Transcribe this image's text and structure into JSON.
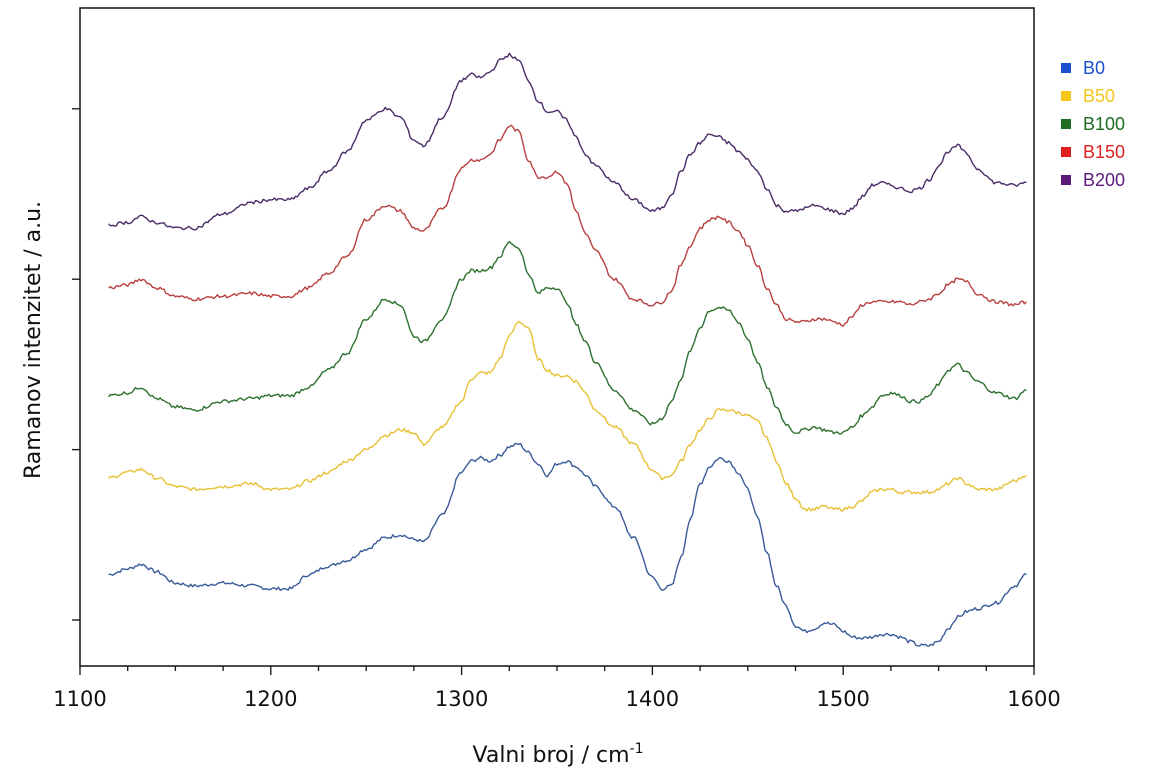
{
  "chart_data": {
    "type": "line",
    "xlabel": "Valni broj / cm",
    "xlabel_sup": "-1",
    "ylabel": "Ramanov intenzitet / a.u.",
    "xlim": [
      1100,
      1600
    ],
    "ylim": [
      0,
      10
    ],
    "x_ticks": [
      1100,
      1200,
      1300,
      1400,
      1500,
      1600
    ],
    "x_tick_labels": [
      "1100",
      "1200",
      "1300",
      "1400",
      "1500",
      "1600"
    ],
    "y_ticks": [
      0,
      3,
      6,
      9
    ],
    "y_tick_labels_shown": false,
    "grid": false,
    "legend_position": "top-right",
    "series": [
      {
        "name": "B0",
        "color": "#3a5a9a",
        "legend_color": "#1a4fd0",
        "x": [
          1115,
          1125,
          1132,
          1140,
          1150,
          1160,
          1175,
          1190,
          1200,
          1210,
          1220,
          1230,
          1240,
          1250,
          1260,
          1268,
          1275,
          1280,
          1290,
          1300,
          1305,
          1310,
          1315,
          1320,
          1325,
          1330,
          1335,
          1340,
          1345,
          1350,
          1355,
          1360,
          1365,
          1370,
          1380,
          1390,
          1400,
          1405,
          1410,
          1415,
          1420,
          1425,
          1430,
          1435,
          1440,
          1445,
          1450,
          1455,
          1460,
          1465,
          1470,
          1475,
          1480,
          1485,
          1490,
          1495,
          1500,
          1505,
          1510,
          1515,
          1520,
          1525,
          1530,
          1535,
          1540,
          1545,
          1550,
          1555,
          1560,
          1565,
          1570,
          1580,
          1590,
          1596
        ],
        "values": [
          0.8,
          0.9,
          0.98,
          0.85,
          0.65,
          0.6,
          0.65,
          0.6,
          0.55,
          0.55,
          0.8,
          0.95,
          1.05,
          1.25,
          1.45,
          1.5,
          1.42,
          1.38,
          1.85,
          2.6,
          2.8,
          2.85,
          2.8,
          2.9,
          3.05,
          3.1,
          2.95,
          2.75,
          2.55,
          2.75,
          2.8,
          2.7,
          2.55,
          2.35,
          2.0,
          1.45,
          0.75,
          0.55,
          0.6,
          1.1,
          1.8,
          2.4,
          2.7,
          2.85,
          2.8,
          2.6,
          2.3,
          1.8,
          1.2,
          0.6,
          0.25,
          -0.1,
          -0.2,
          -0.15,
          -0.05,
          -0.08,
          -0.2,
          -0.3,
          -0.32,
          -0.3,
          -0.25,
          -0.25,
          -0.3,
          -0.38,
          -0.45,
          -0.45,
          -0.38,
          -0.15,
          0.05,
          0.15,
          0.2,
          0.3,
          0.6,
          0.8
        ]
      },
      {
        "name": "B50",
        "color": "#e8c034",
        "legend_color": "#f5c518",
        "x": [
          1115,
          1125,
          1132,
          1140,
          1150,
          1160,
          1175,
          1190,
          1200,
          1210,
          1220,
          1230,
          1240,
          1250,
          1260,
          1268,
          1275,
          1280,
          1290,
          1300,
          1305,
          1310,
          1315,
          1320,
          1325,
          1330,
          1335,
          1340,
          1345,
          1350,
          1355,
          1360,
          1365,
          1370,
          1380,
          1390,
          1400,
          1405,
          1410,
          1415,
          1420,
          1425,
          1430,
          1435,
          1440,
          1445,
          1450,
          1455,
          1460,
          1465,
          1470,
          1475,
          1480,
          1485,
          1490,
          1495,
          1500,
          1505,
          1510,
          1515,
          1520,
          1525,
          1530,
          1535,
          1540,
          1545,
          1550,
          1555,
          1560,
          1565,
          1570,
          1580,
          1590,
          1596
        ],
        "values": [
          2.5,
          2.6,
          2.65,
          2.5,
          2.35,
          2.3,
          2.35,
          2.4,
          2.3,
          2.3,
          2.45,
          2.6,
          2.8,
          3.0,
          3.25,
          3.35,
          3.3,
          3.1,
          3.4,
          3.85,
          4.25,
          4.35,
          4.35,
          4.6,
          5.0,
          5.25,
          5.15,
          4.6,
          4.4,
          4.3,
          4.3,
          4.2,
          4.0,
          3.7,
          3.4,
          3.1,
          2.65,
          2.5,
          2.55,
          2.8,
          3.1,
          3.35,
          3.55,
          3.7,
          3.7,
          3.65,
          3.6,
          3.5,
          3.2,
          2.8,
          2.4,
          2.15,
          1.95,
          1.95,
          2.0,
          1.95,
          1.95,
          2.0,
          2.1,
          2.25,
          2.3,
          2.3,
          2.25,
          2.25,
          2.25,
          2.25,
          2.3,
          2.4,
          2.5,
          2.4,
          2.3,
          2.3,
          2.45,
          2.55
        ]
      },
      {
        "name": "B100",
        "color": "#2e7030",
        "legend_color": "#1e6b22",
        "x": [
          1115,
          1125,
          1132,
          1140,
          1150,
          1160,
          1175,
          1190,
          1200,
          1210,
          1220,
          1230,
          1240,
          1250,
          1260,
          1268,
          1275,
          1280,
          1290,
          1300,
          1305,
          1310,
          1315,
          1320,
          1325,
          1330,
          1335,
          1340,
          1345,
          1350,
          1355,
          1360,
          1365,
          1370,
          1380,
          1390,
          1400,
          1405,
          1410,
          1415,
          1420,
          1425,
          1430,
          1435,
          1440,
          1445,
          1450,
          1455,
          1460,
          1465,
          1470,
          1475,
          1480,
          1485,
          1490,
          1495,
          1500,
          1505,
          1510,
          1515,
          1520,
          1525,
          1530,
          1535,
          1540,
          1545,
          1550,
          1555,
          1560,
          1565,
          1570,
          1580,
          1590,
          1596
        ],
        "values": [
          3.95,
          4.0,
          4.1,
          3.9,
          3.75,
          3.7,
          3.85,
          3.9,
          3.95,
          3.95,
          4.1,
          4.4,
          4.7,
          5.3,
          5.65,
          5.55,
          5.0,
          4.9,
          5.3,
          6.0,
          6.15,
          6.15,
          6.2,
          6.4,
          6.65,
          6.55,
          6.1,
          5.75,
          5.85,
          5.85,
          5.6,
          5.2,
          4.9,
          4.55,
          4.05,
          3.7,
          3.45,
          3.55,
          3.85,
          4.25,
          4.75,
          5.15,
          5.45,
          5.5,
          5.45,
          5.25,
          4.95,
          4.55,
          4.1,
          3.75,
          3.45,
          3.3,
          3.35,
          3.4,
          3.35,
          3.3,
          3.3,
          3.4,
          3.6,
          3.75,
          3.95,
          4.0,
          3.95,
          3.85,
          3.85,
          3.95,
          4.15,
          4.4,
          4.5,
          4.35,
          4.2,
          4.0,
          3.9,
          4.05
        ]
      },
      {
        "name": "B150",
        "color": "#b84040",
        "legend_color": "#e02020",
        "x": [
          1115,
          1125,
          1132,
          1140,
          1150,
          1160,
          1175,
          1190,
          1200,
          1210,
          1220,
          1230,
          1240,
          1250,
          1260,
          1268,
          1275,
          1280,
          1290,
          1300,
          1305,
          1310,
          1315,
          1320,
          1325,
          1330,
          1335,
          1340,
          1345,
          1350,
          1355,
          1360,
          1365,
          1370,
          1380,
          1390,
          1400,
          1405,
          1410,
          1415,
          1420,
          1425,
          1430,
          1435,
          1440,
          1445,
          1450,
          1455,
          1460,
          1465,
          1470,
          1475,
          1480,
          1485,
          1490,
          1495,
          1500,
          1505,
          1510,
          1515,
          1520,
          1525,
          1530,
          1535,
          1540,
          1545,
          1550,
          1555,
          1560,
          1565,
          1570,
          1580,
          1590,
          1596
        ],
        "values": [
          5.85,
          5.9,
          6.0,
          5.85,
          5.7,
          5.65,
          5.7,
          5.75,
          5.7,
          5.7,
          5.85,
          6.1,
          6.4,
          7.05,
          7.3,
          7.2,
          6.9,
          6.85,
          7.25,
          7.95,
          8.1,
          8.1,
          8.2,
          8.45,
          8.7,
          8.6,
          8.1,
          7.8,
          7.8,
          7.9,
          7.7,
          7.2,
          6.8,
          6.5,
          6.0,
          5.65,
          5.55,
          5.6,
          5.8,
          6.25,
          6.6,
          6.9,
          7.05,
          7.1,
          7.0,
          6.85,
          6.6,
          6.25,
          5.85,
          5.55,
          5.3,
          5.25,
          5.25,
          5.3,
          5.3,
          5.25,
          5.2,
          5.35,
          5.55,
          5.6,
          5.6,
          5.6,
          5.6,
          5.55,
          5.6,
          5.65,
          5.75,
          5.9,
          6.0,
          5.95,
          5.75,
          5.6,
          5.55,
          5.6
        ]
      },
      {
        "name": "B200",
        "color": "#4a2c66",
        "legend_color": "#5c1a7a",
        "x": [
          1115,
          1125,
          1132,
          1140,
          1150,
          1160,
          1175,
          1190,
          1200,
          1210,
          1220,
          1230,
          1240,
          1250,
          1260,
          1268,
          1275,
          1280,
          1290,
          1300,
          1305,
          1310,
          1315,
          1320,
          1325,
          1330,
          1335,
          1340,
          1345,
          1350,
          1355,
          1360,
          1365,
          1370,
          1380,
          1390,
          1400,
          1405,
          1410,
          1415,
          1420,
          1425,
          1430,
          1435,
          1440,
          1445,
          1450,
          1455,
          1460,
          1465,
          1470,
          1475,
          1480,
          1485,
          1490,
          1495,
          1500,
          1505,
          1510,
          1515,
          1520,
          1525,
          1530,
          1535,
          1540,
          1545,
          1550,
          1555,
          1560,
          1565,
          1570,
          1580,
          1590,
          1596
        ],
        "values": [
          6.95,
          7.0,
          7.1,
          7.0,
          6.9,
          6.9,
          7.15,
          7.35,
          7.4,
          7.4,
          7.6,
          7.9,
          8.25,
          8.8,
          9.0,
          8.85,
          8.45,
          8.35,
          8.85,
          9.5,
          9.6,
          9.55,
          9.65,
          9.85,
          9.95,
          9.85,
          9.5,
          9.15,
          8.95,
          8.95,
          8.8,
          8.5,
          8.2,
          8.0,
          7.7,
          7.4,
          7.2,
          7.25,
          7.5,
          7.9,
          8.2,
          8.4,
          8.55,
          8.5,
          8.4,
          8.25,
          8.1,
          7.9,
          7.6,
          7.3,
          7.2,
          7.2,
          7.25,
          7.3,
          7.25,
          7.2,
          7.15,
          7.25,
          7.45,
          7.65,
          7.7,
          7.65,
          7.6,
          7.55,
          7.6,
          7.75,
          8.0,
          8.25,
          8.35,
          8.2,
          7.95,
          7.7,
          7.65,
          7.7
        ]
      }
    ]
  }
}
